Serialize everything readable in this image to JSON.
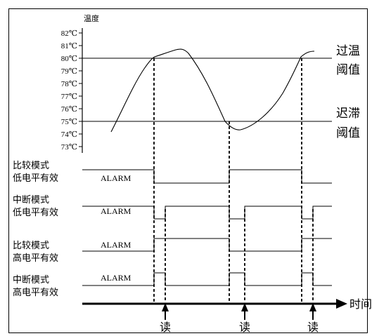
{
  "temperature_axis": {
    "title": "温度",
    "ticks": [
      "82℃",
      "81℃",
      "80℃",
      "79℃",
      "78℃",
      "77℃",
      "76℃",
      "75℃",
      "74℃",
      "73℃"
    ]
  },
  "thresholds": {
    "over_temp": [
      "过温",
      "阈值"
    ],
    "hysteresis": [
      "迟滞",
      "阈值"
    ]
  },
  "rows": [
    {
      "label": [
        "比较模式",
        "低电平有效"
      ],
      "alarm": "ALARM"
    },
    {
      "label": [
        "中断模式",
        "低电平有效"
      ],
      "alarm": "ALARM"
    },
    {
      "label": [
        "比较模式",
        "高电平有效"
      ],
      "alarm": "ALARM"
    },
    {
      "label": [
        "中断模式",
        "高电平有效"
      ],
      "alarm": "ALARM"
    }
  ],
  "time_axis": {
    "label": "时间"
  },
  "read_labels": [
    "读",
    "读",
    "读"
  ]
}
